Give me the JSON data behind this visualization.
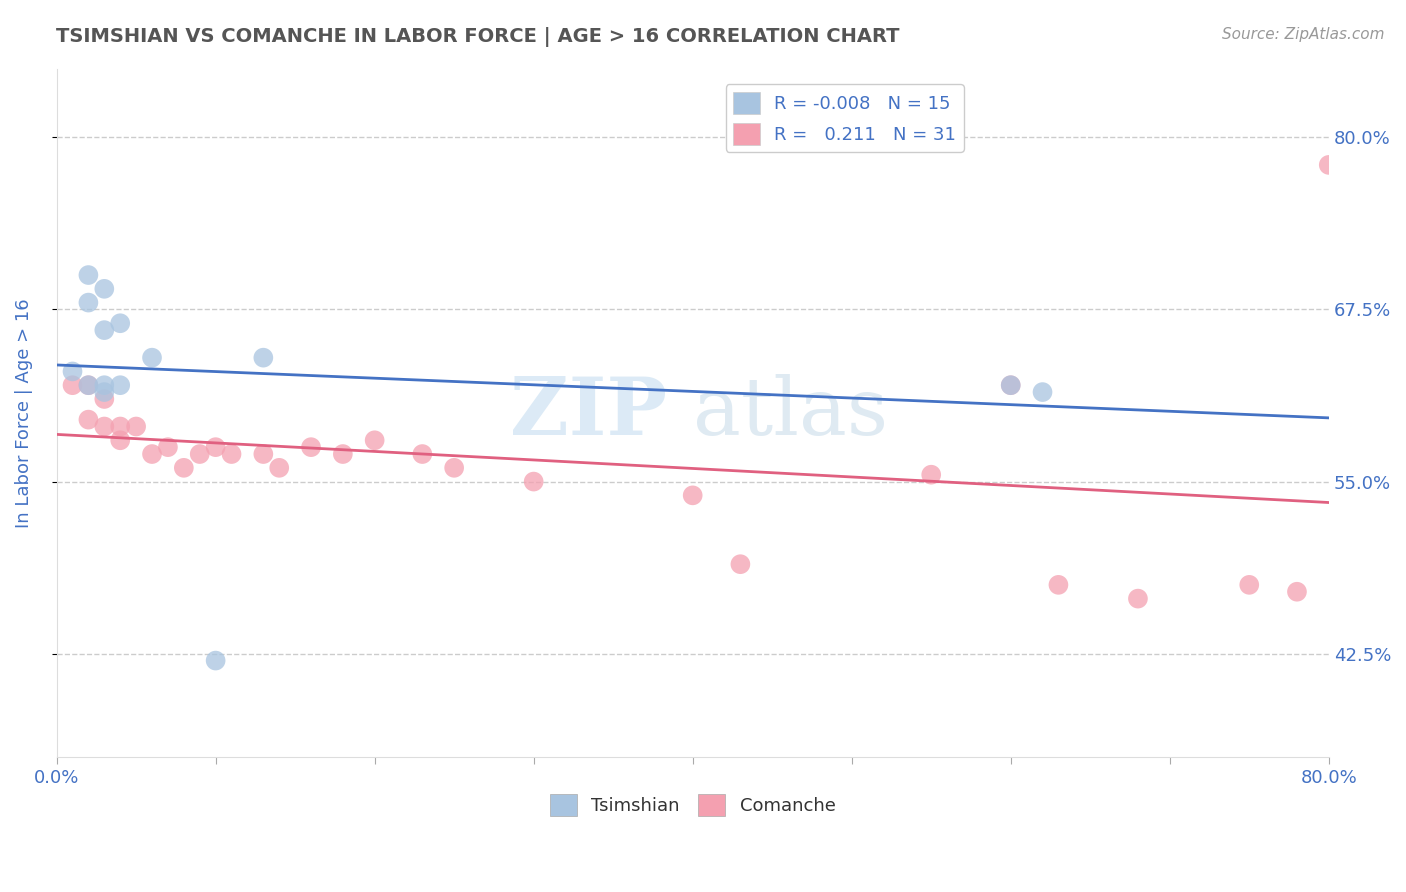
{
  "title": "TSIMSHIAN VS COMANCHE IN LABOR FORCE | AGE > 16 CORRELATION CHART",
  "source_text": "Source: ZipAtlas.com",
  "ylabel": "In Labor Force | Age > 16",
  "xlim": [
    0.0,
    0.8
  ],
  "ylim": [
    0.35,
    0.85
  ],
  "yticks": [
    0.425,
    0.55,
    0.675,
    0.8
  ],
  "ytick_labels": [
    "42.5%",
    "55.0%",
    "67.5%",
    "80.0%"
  ],
  "xticks": [
    0.0,
    0.1,
    0.2,
    0.3,
    0.4,
    0.5,
    0.6,
    0.7,
    0.8
  ],
  "xtick_labels": [
    "0.0%",
    "",
    "",
    "",
    "",
    "",
    "",
    "",
    "80.0%"
  ],
  "tsimshian_x": [
    0.01,
    0.02,
    0.02,
    0.02,
    0.03,
    0.03,
    0.03,
    0.03,
    0.04,
    0.04,
    0.06,
    0.13,
    0.6,
    0.62,
    0.1
  ],
  "tsimshian_y": [
    0.63,
    0.7,
    0.68,
    0.62,
    0.69,
    0.66,
    0.62,
    0.615,
    0.665,
    0.62,
    0.64,
    0.64,
    0.62,
    0.615,
    0.42
  ],
  "comanche_x": [
    0.01,
    0.02,
    0.02,
    0.03,
    0.03,
    0.04,
    0.04,
    0.05,
    0.06,
    0.07,
    0.08,
    0.09,
    0.1,
    0.11,
    0.13,
    0.14,
    0.16,
    0.18,
    0.2,
    0.23,
    0.25,
    0.3,
    0.4,
    0.43,
    0.55,
    0.6,
    0.63,
    0.68,
    0.75,
    0.78,
    0.8
  ],
  "comanche_y": [
    0.62,
    0.62,
    0.595,
    0.61,
    0.59,
    0.59,
    0.58,
    0.59,
    0.57,
    0.575,
    0.56,
    0.57,
    0.575,
    0.57,
    0.57,
    0.56,
    0.575,
    0.57,
    0.58,
    0.57,
    0.56,
    0.55,
    0.54,
    0.49,
    0.555,
    0.62,
    0.475,
    0.465,
    0.475,
    0.47,
    0.78
  ],
  "tsimshian_color": "#a8c4e0",
  "comanche_color": "#f4a0b0",
  "tsimshian_line_color": "#4472c4",
  "comanche_line_color": "#e06080",
  "tsimshian_r": -0.008,
  "tsimshian_n": 15,
  "comanche_r": 0.211,
  "comanche_n": 31,
  "background_color": "#ffffff",
  "grid_color": "#cccccc",
  "title_color": "#555555",
  "axis_label_color": "#4472c4",
  "tick_color": "#4472c4"
}
